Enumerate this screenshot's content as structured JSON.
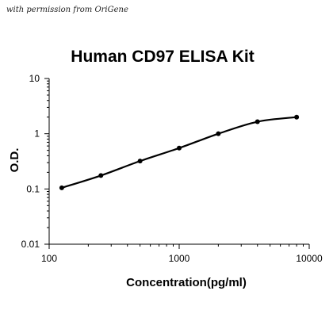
{
  "caption": "with permission from OriGene",
  "chart_data": {
    "type": "line",
    "title": "Human CD97 ELISA Kit",
    "xlabel": "Concentration(pg/ml)",
    "ylabel": "O.D.",
    "x_scale": "log",
    "y_scale": "log",
    "xlim": [
      100,
      10000
    ],
    "ylim": [
      0.01,
      10
    ],
    "x_ticks": [
      "100",
      "1000",
      "10000"
    ],
    "y_ticks": [
      "10",
      "1",
      "0.1",
      "0.01"
    ],
    "grid": false,
    "series": [
      {
        "x": [
          125,
          250,
          500,
          1000,
          2000,
          4000,
          8000
        ],
        "y": [
          0.105,
          0.175,
          0.32,
          0.55,
          1.0,
          1.65,
          2.0
        ]
      }
    ],
    "line_color": "#000000"
  }
}
